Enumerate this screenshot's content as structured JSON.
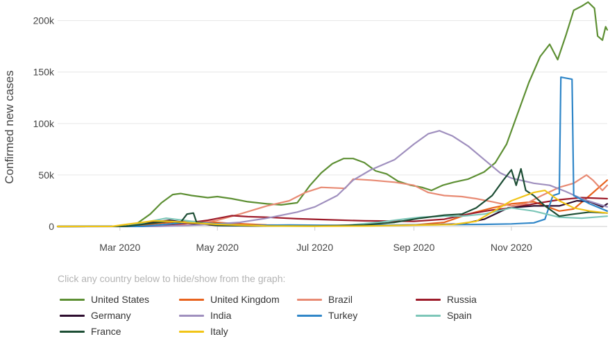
{
  "chart_data": {
    "type": "line",
    "ylabel": "Confirmed new cases",
    "ylim": [
      0,
      220000
    ],
    "yticks": [
      0,
      50000,
      100000,
      150000,
      200000
    ],
    "ytick_labels": [
      "0",
      "50k",
      "100k",
      "150k",
      "200k"
    ],
    "xlim": [
      "2020-01-22",
      "2020-12-31"
    ],
    "xticks": [
      "2020-03-01",
      "2020-05-01",
      "2020-07-01",
      "2020-09-01",
      "2020-11-01"
    ],
    "xtick_labels": [
      "Mar 2020",
      "May 2020",
      "Jul 2020",
      "Sep 2020",
      "Nov 2020"
    ],
    "grid": "horizontal",
    "legend_hint": "Click any country below to hide/show from the graph:",
    "legend_position": "bottom",
    "series": [
      {
        "name": "United States",
        "color": "#5d8f33",
        "points": [
          [
            "2020-01-22",
            0
          ],
          [
            "2020-03-01",
            100
          ],
          [
            "2020-03-10",
            1000
          ],
          [
            "2020-03-20",
            12000
          ],
          [
            "2020-03-27",
            23000
          ],
          [
            "2020-04-03",
            31000
          ],
          [
            "2020-04-08",
            32000
          ],
          [
            "2020-04-15",
            30000
          ],
          [
            "2020-04-25",
            28000
          ],
          [
            "2020-05-01",
            29000
          ],
          [
            "2020-05-10",
            27000
          ],
          [
            "2020-05-20",
            24000
          ],
          [
            "2020-06-01",
            22000
          ],
          [
            "2020-06-10",
            21000
          ],
          [
            "2020-06-20",
            23000
          ],
          [
            "2020-06-28",
            40000
          ],
          [
            "2020-07-05",
            52000
          ],
          [
            "2020-07-12",
            61000
          ],
          [
            "2020-07-19",
            66000
          ],
          [
            "2020-07-25",
            66000
          ],
          [
            "2020-08-01",
            62000
          ],
          [
            "2020-08-08",
            54000
          ],
          [
            "2020-08-15",
            51000
          ],
          [
            "2020-08-22",
            44000
          ],
          [
            "2020-08-30",
            40000
          ],
          [
            "2020-09-06",
            38000
          ],
          [
            "2020-09-12",
            35000
          ],
          [
            "2020-09-19",
            40000
          ],
          [
            "2020-09-26",
            43000
          ],
          [
            "2020-10-05",
            46000
          ],
          [
            "2020-10-15",
            53000
          ],
          [
            "2020-10-22",
            62000
          ],
          [
            "2020-10-29",
            80000
          ],
          [
            "2020-11-05",
            110000
          ],
          [
            "2020-11-12",
            140000
          ],
          [
            "2020-11-19",
            165000
          ],
          [
            "2020-11-25",
            177000
          ],
          [
            "2020-11-30",
            162000
          ],
          [
            "2020-12-05",
            185000
          ],
          [
            "2020-12-10",
            210000
          ],
          [
            "2020-12-15",
            214000
          ],
          [
            "2020-12-19",
            218000
          ],
          [
            "2020-12-23",
            212000
          ],
          [
            "2020-12-25",
            185000
          ],
          [
            "2020-12-28",
            181000
          ],
          [
            "2020-12-30",
            194000
          ],
          [
            "2020-12-31",
            191000
          ]
        ]
      },
      {
        "name": "United Kingdom",
        "color": "#e8621d",
        "points": [
          [
            "2020-01-22",
            0
          ],
          [
            "2020-03-10",
            100
          ],
          [
            "2020-03-25",
            3000
          ],
          [
            "2020-04-10",
            5000
          ],
          [
            "2020-04-25",
            4500
          ],
          [
            "2020-05-10",
            3000
          ],
          [
            "2020-06-01",
            1500
          ],
          [
            "2020-07-01",
            700
          ],
          [
            "2020-08-01",
            800
          ],
          [
            "2020-09-01",
            1500
          ],
          [
            "2020-09-20",
            4000
          ],
          [
            "2020-10-05",
            12000
          ],
          [
            "2020-10-20",
            18000
          ],
          [
            "2020-11-01",
            22000
          ],
          [
            "2020-11-15",
            24000
          ],
          [
            "2020-12-01",
            15000
          ],
          [
            "2020-12-10",
            17000
          ],
          [
            "2020-12-20",
            30000
          ],
          [
            "2020-12-31",
            45000
          ]
        ]
      },
      {
        "name": "Brazil",
        "color": "#e88a73",
        "points": [
          [
            "2020-01-22",
            0
          ],
          [
            "2020-03-20",
            100
          ],
          [
            "2020-04-15",
            2000
          ],
          [
            "2020-05-01",
            6000
          ],
          [
            "2020-05-15",
            12000
          ],
          [
            "2020-06-01",
            20000
          ],
          [
            "2020-06-15",
            25000
          ],
          [
            "2020-06-25",
            33000
          ],
          [
            "2020-07-05",
            38000
          ],
          [
            "2020-07-20",
            37000
          ],
          [
            "2020-07-25",
            46000
          ],
          [
            "2020-08-05",
            45000
          ],
          [
            "2020-08-20",
            43000
          ],
          [
            "2020-09-01",
            40000
          ],
          [
            "2020-09-10",
            33000
          ],
          [
            "2020-09-20",
            30000
          ],
          [
            "2020-10-01",
            29000
          ],
          [
            "2020-10-10",
            27000
          ],
          [
            "2020-10-20",
            24000
          ],
          [
            "2020-11-01",
            20000
          ],
          [
            "2020-11-10",
            22000
          ],
          [
            "2020-11-20",
            30000
          ],
          [
            "2020-12-01",
            38000
          ],
          [
            "2020-12-10",
            42000
          ],
          [
            "2020-12-18",
            50000
          ],
          [
            "2020-12-22",
            45000
          ],
          [
            "2020-12-28",
            35000
          ],
          [
            "2020-12-31",
            40000
          ]
        ]
      },
      {
        "name": "Russia",
        "color": "#9d1b2a",
        "points": [
          [
            "2020-01-22",
            0
          ],
          [
            "2020-03-20",
            200
          ],
          [
            "2020-04-10",
            3000
          ],
          [
            "2020-04-25",
            6000
          ],
          [
            "2020-05-10",
            10500
          ],
          [
            "2020-05-20",
            9500
          ],
          [
            "2020-06-01",
            9000
          ],
          [
            "2020-06-20",
            7500
          ],
          [
            "2020-07-10",
            6500
          ],
          [
            "2020-08-01",
            5500
          ],
          [
            "2020-09-01",
            5000
          ],
          [
            "2020-09-20",
            7000
          ],
          [
            "2020-10-05",
            12000
          ],
          [
            "2020-10-20",
            16000
          ],
          [
            "2020-11-01",
            18000
          ],
          [
            "2020-11-15",
            22000
          ],
          [
            "2020-12-01",
            26000
          ],
          [
            "2020-12-15",
            28000
          ],
          [
            "2020-12-31",
            27000
          ]
        ]
      },
      {
        "name": "Germany",
        "color": "#2d0c2e",
        "points": [
          [
            "2020-01-22",
            0
          ],
          [
            "2020-03-05",
            200
          ],
          [
            "2020-03-20",
            4000
          ],
          [
            "2020-04-01",
            6000
          ],
          [
            "2020-04-15",
            3000
          ],
          [
            "2020-05-01",
            1000
          ],
          [
            "2020-06-01",
            400
          ],
          [
            "2020-07-01",
            400
          ],
          [
            "2020-08-15",
            1200
          ],
          [
            "2020-09-15",
            1800
          ],
          [
            "2020-10-01",
            2500
          ],
          [
            "2020-10-15",
            7000
          ],
          [
            "2020-10-30",
            18000
          ],
          [
            "2020-11-15",
            20000
          ],
          [
            "2020-12-01",
            20000
          ],
          [
            "2020-12-12",
            25000
          ],
          [
            "2020-12-20",
            24000
          ],
          [
            "2020-12-28",
            19000
          ],
          [
            "2020-12-31",
            22000
          ]
        ]
      },
      {
        "name": "India",
        "color": "#9f8fbe",
        "points": [
          [
            "2020-01-22",
            0
          ],
          [
            "2020-03-25",
            100
          ],
          [
            "2020-04-20",
            1500
          ],
          [
            "2020-05-15",
            4000
          ],
          [
            "2020-06-01",
            8000
          ],
          [
            "2020-06-20",
            14000
          ],
          [
            "2020-07-01",
            19000
          ],
          [
            "2020-07-15",
            30000
          ],
          [
            "2020-07-25",
            45000
          ],
          [
            "2020-08-05",
            55000
          ],
          [
            "2020-08-20",
            65000
          ],
          [
            "2020-09-01",
            80000
          ],
          [
            "2020-09-10",
            90000
          ],
          [
            "2020-09-17",
            93000
          ],
          [
            "2020-09-25",
            88000
          ],
          [
            "2020-10-05",
            78000
          ],
          [
            "2020-10-15",
            65000
          ],
          [
            "2020-10-25",
            52000
          ],
          [
            "2020-11-01",
            47000
          ],
          [
            "2020-11-15",
            42000
          ],
          [
            "2020-11-25",
            40000
          ],
          [
            "2020-12-05",
            34000
          ],
          [
            "2020-12-15",
            27000
          ],
          [
            "2020-12-25",
            22000
          ],
          [
            "2020-12-31",
            19000
          ]
        ]
      },
      {
        "name": "Turkey",
        "color": "#2f86c8",
        "points": [
          [
            "2020-01-22",
            0
          ],
          [
            "2020-03-15",
            100
          ],
          [
            "2020-04-05",
            3000
          ],
          [
            "2020-04-15",
            4500
          ],
          [
            "2020-05-01",
            2500
          ],
          [
            "2020-05-20",
            1000
          ],
          [
            "2020-06-15",
            1500
          ],
          [
            "2020-07-15",
            1000
          ],
          [
            "2020-08-15",
            1300
          ],
          [
            "2020-09-15",
            1700
          ],
          [
            "2020-10-15",
            2000
          ],
          [
            "2020-11-01",
            2500
          ],
          [
            "2020-11-15",
            3500
          ],
          [
            "2020-11-22",
            7000
          ],
          [
            "2020-11-27",
            30000
          ],
          [
            "2020-12-01",
            32000
          ],
          [
            "2020-12-02",
            145000
          ],
          [
            "2020-12-09",
            143000
          ],
          [
            "2020-12-10",
            30000
          ],
          [
            "2020-12-20",
            22000
          ],
          [
            "2020-12-31",
            15000
          ]
        ]
      },
      {
        "name": "Spain",
        "color": "#7cc6b8",
        "points": [
          [
            "2020-01-22",
            0
          ],
          [
            "2020-03-05",
            200
          ],
          [
            "2020-03-20",
            5000
          ],
          [
            "2020-03-30",
            8000
          ],
          [
            "2020-04-10",
            6000
          ],
          [
            "2020-05-01",
            1500
          ],
          [
            "2020-06-01",
            400
          ],
          [
            "2020-07-01",
            300
          ],
          [
            "2020-07-20",
            1000
          ],
          [
            "2020-08-10",
            4000
          ],
          [
            "2020-08-25",
            7000
          ],
          [
            "2020-09-05",
            9000
          ],
          [
            "2020-09-20",
            10000
          ],
          [
            "2020-10-01",
            10000
          ],
          [
            "2020-10-15",
            12000
          ],
          [
            "2020-11-01",
            18000
          ],
          [
            "2020-11-15",
            15000
          ],
          [
            "2020-12-01",
            9000
          ],
          [
            "2020-12-15",
            8000
          ],
          [
            "2020-12-31",
            10000
          ]
        ]
      },
      {
        "name": "France",
        "color": "#1c4d34",
        "points": [
          [
            "2020-01-22",
            0
          ],
          [
            "2020-03-05",
            200
          ],
          [
            "2020-03-20",
            3000
          ],
          [
            "2020-03-31",
            5000
          ],
          [
            "2020-04-08",
            4000
          ],
          [
            "2020-04-12",
            12000
          ],
          [
            "2020-04-16",
            13000
          ],
          [
            "2020-04-18",
            4000
          ],
          [
            "2020-05-01",
            1000
          ],
          [
            "2020-06-01",
            500
          ],
          [
            "2020-07-01",
            500
          ],
          [
            "2020-08-01",
            1500
          ],
          [
            "2020-08-20",
            4000
          ],
          [
            "2020-09-05",
            8000
          ],
          [
            "2020-09-20",
            11000
          ],
          [
            "2020-10-01",
            12000
          ],
          [
            "2020-10-10",
            18000
          ],
          [
            "2020-10-20",
            30000
          ],
          [
            "2020-10-27",
            45000
          ],
          [
            "2020-11-01",
            55000
          ],
          [
            "2020-11-04",
            40000
          ],
          [
            "2020-11-07",
            56000
          ],
          [
            "2020-11-10",
            35000
          ],
          [
            "2020-11-15",
            30000
          ],
          [
            "2020-11-22",
            20000
          ],
          [
            "2020-12-01",
            10000
          ],
          [
            "2020-12-10",
            12000
          ],
          [
            "2020-12-20",
            14000
          ],
          [
            "2020-12-31",
            13000
          ]
        ]
      },
      {
        "name": "Italy",
        "color": "#f1c416",
        "points": [
          [
            "2020-01-22",
            0
          ],
          [
            "2020-02-25",
            100
          ],
          [
            "2020-03-05",
            2000
          ],
          [
            "2020-03-15",
            4000
          ],
          [
            "2020-03-22",
            5500
          ],
          [
            "2020-04-01",
            5000
          ],
          [
            "2020-04-15",
            3500
          ],
          [
            "2020-05-01",
            2000
          ],
          [
            "2020-06-01",
            500
          ],
          [
            "2020-07-01",
            300
          ],
          [
            "2020-08-01",
            400
          ],
          [
            "2020-09-01",
            1300
          ],
          [
            "2020-09-25",
            1800
          ],
          [
            "2020-10-10",
            5000
          ],
          [
            "2020-10-20",
            14000
          ],
          [
            "2020-11-01",
            25000
          ],
          [
            "2020-11-15",
            33000
          ],
          [
            "2020-11-22",
            35000
          ],
          [
            "2020-12-01",
            25000
          ],
          [
            "2020-12-10",
            18000
          ],
          [
            "2020-12-20",
            15000
          ],
          [
            "2020-12-31",
            13000
          ]
        ]
      }
    ]
  }
}
